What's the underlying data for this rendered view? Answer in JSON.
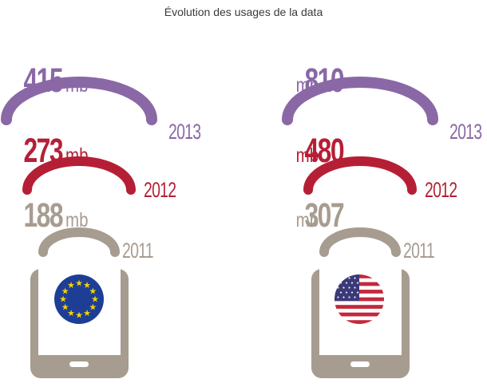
{
  "chart_data": {
    "type": "infographic",
    "title": "Évolution des usages de la data",
    "unit": "mb",
    "series": [
      {
        "region_icon": "eu-flag-icon",
        "points": [
          {
            "year": "2013",
            "value": 415
          },
          {
            "year": "2012",
            "value": 273
          },
          {
            "year": "2011",
            "value": 188
          }
        ]
      },
      {
        "region_icon": "us-flag-icon",
        "points": [
          {
            "year": "2013",
            "value": 810
          },
          {
            "year": "2012",
            "value": 480
          },
          {
            "year": "2011",
            "value": 307
          }
        ]
      }
    ],
    "colors": {
      "2013": "#8a68a6",
      "2012": "#b51f35",
      "2011": "#a79c90",
      "phone": "#a79c90"
    }
  }
}
